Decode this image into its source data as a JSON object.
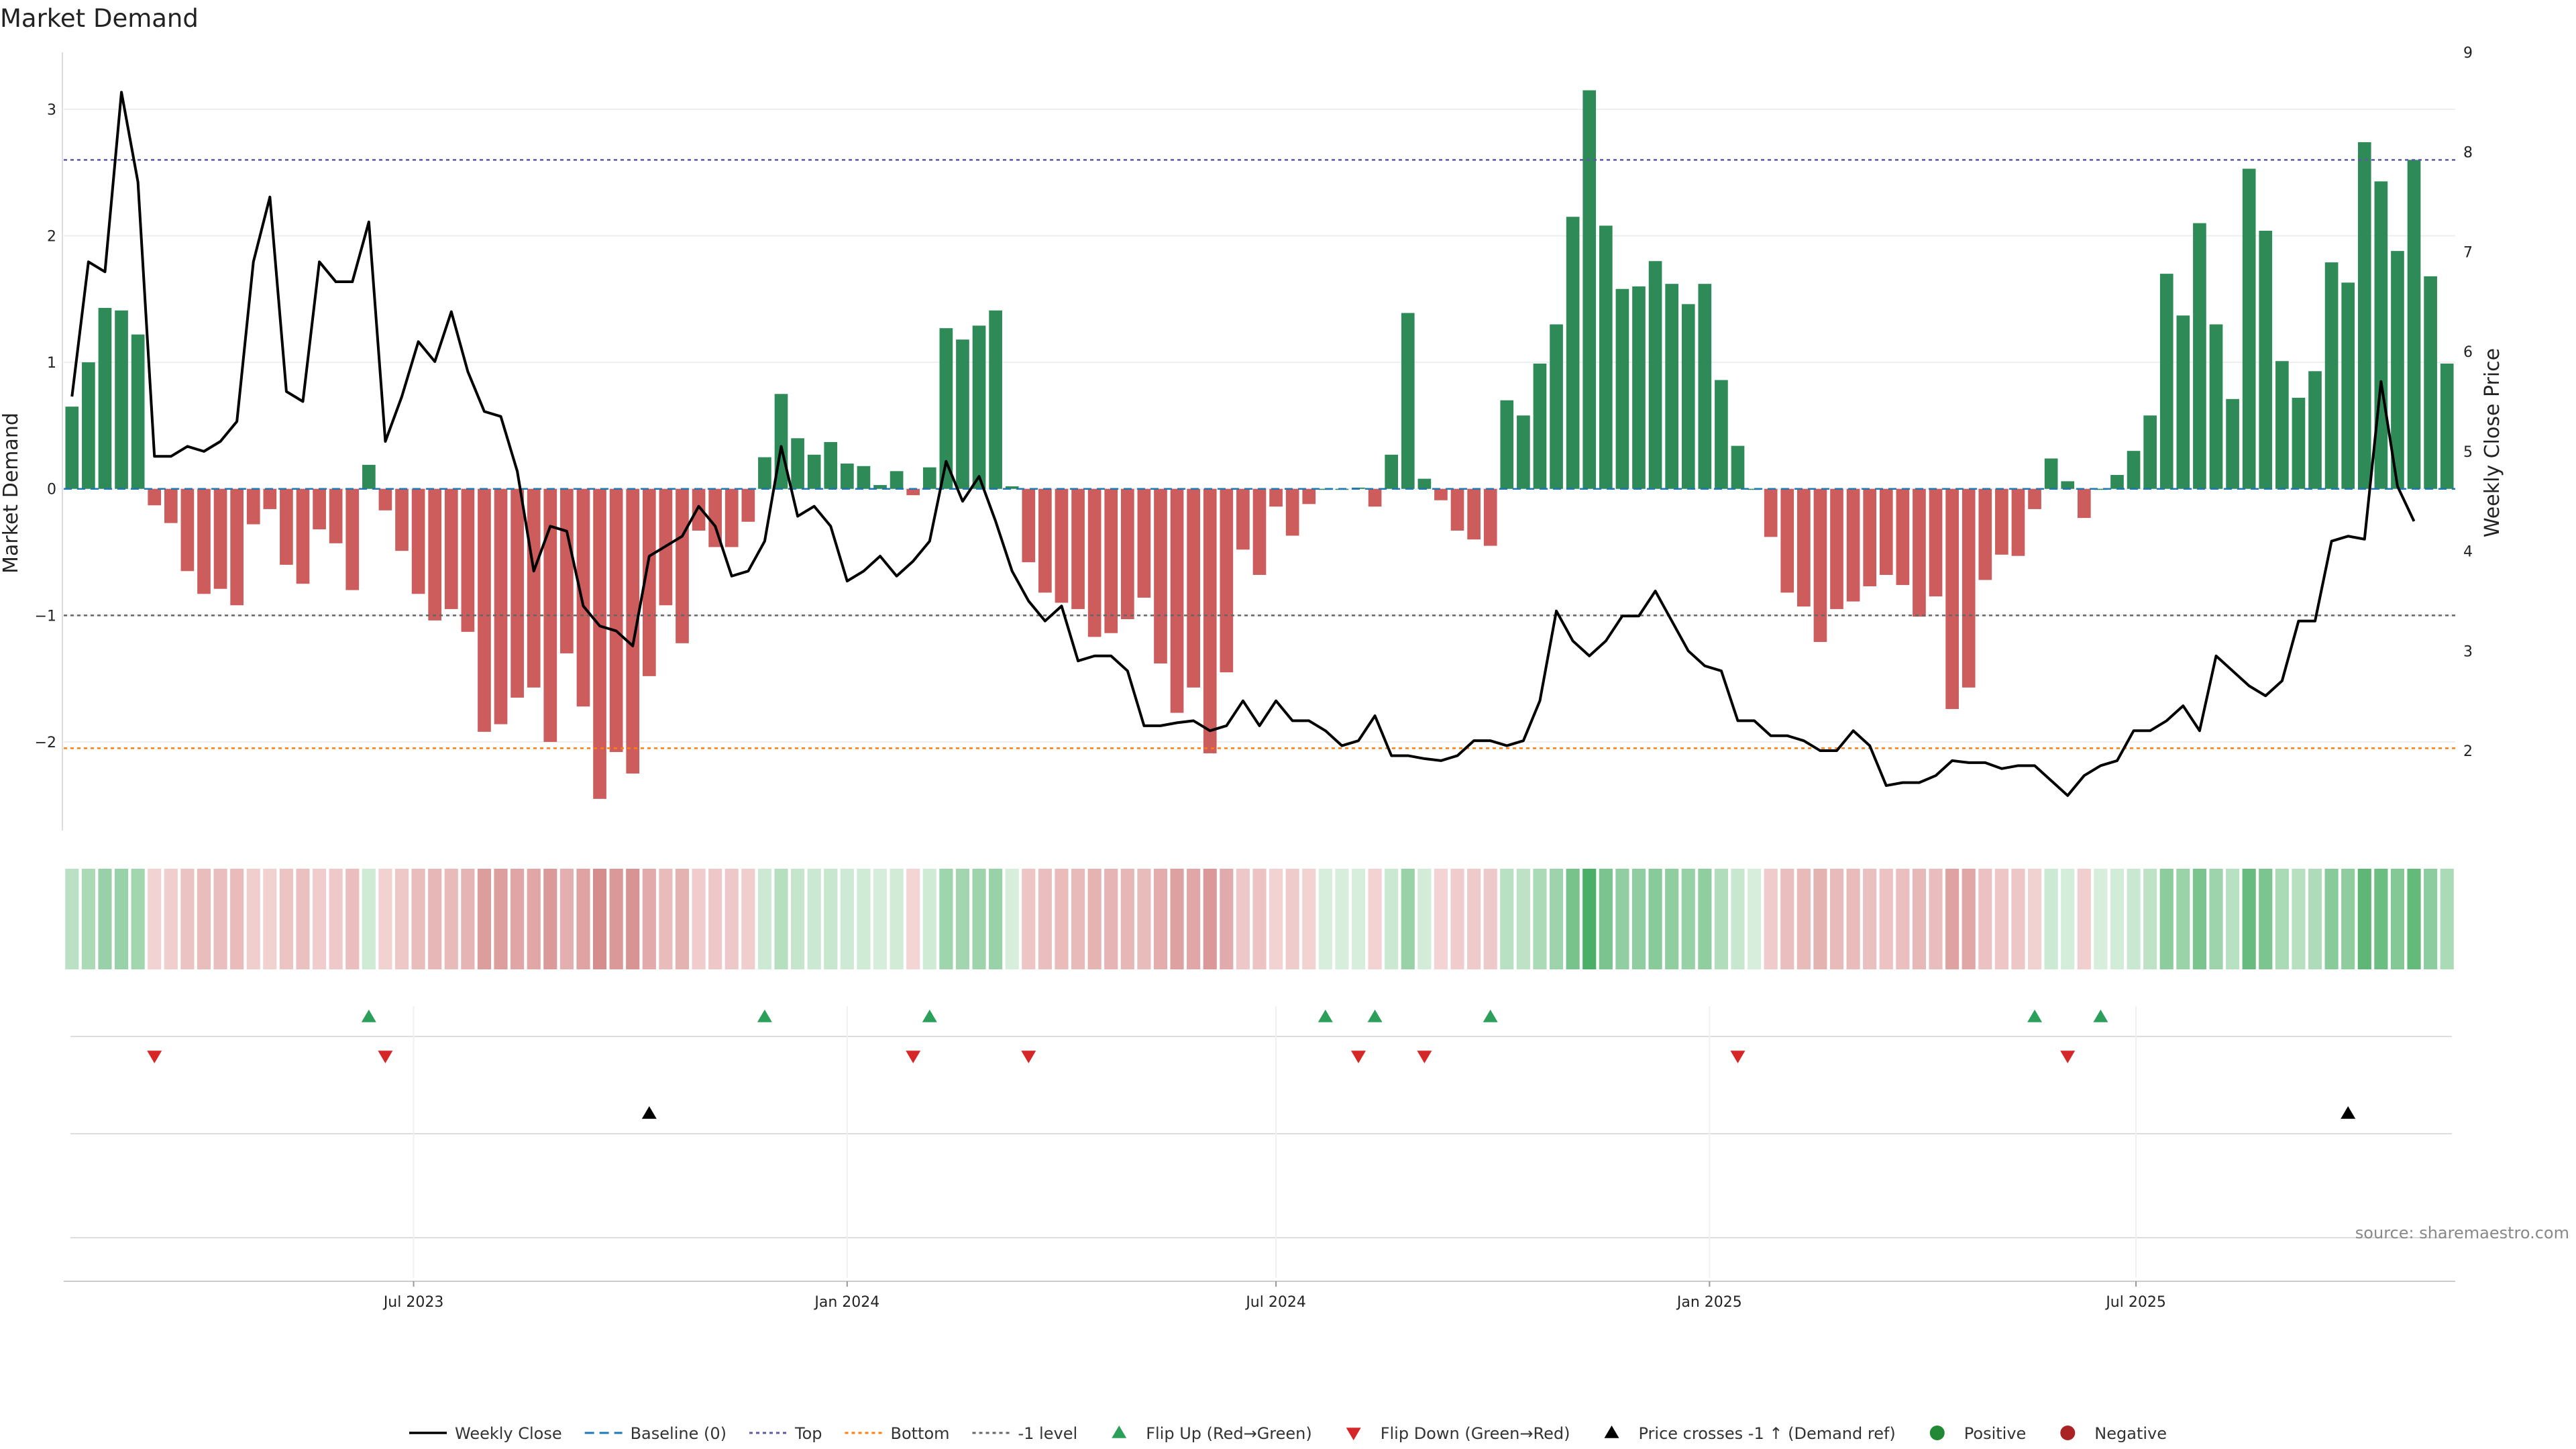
{
  "chart_data": {
    "type": "bar",
    "title": "Market Demand",
    "ylabel": "Market Demand",
    "y2label": "Weekly Close Price",
    "ylim": [
      -2.7,
      3.45
    ],
    "y2lim": [
      1.2,
      9.0
    ],
    "yticks": [
      3,
      2,
      1,
      0,
      -1,
      -2
    ],
    "yticklabels": [
      "3",
      "2",
      "1",
      "0",
      "−1",
      "−2"
    ],
    "y2ticks": [
      9,
      8,
      7,
      6,
      5,
      4,
      3,
      2
    ],
    "y2ticklabels": [
      "9",
      "8",
      "7",
      "6",
      "5",
      "4",
      "3",
      "2"
    ],
    "x_start": "2023-02-06",
    "x_end": "2025-12-01",
    "x_step_days": 7,
    "xticks": [
      "2023-07-01",
      "2024-01-01",
      "2024-07-01",
      "2025-01-01",
      "2025-07-01"
    ],
    "xticklabels": [
      "Jul 2023",
      "Jan 2024",
      "Jul 2024",
      "Jan 2025",
      "Jul 2025"
    ],
    "reference_lines": [
      {
        "name": "Baseline (0)",
        "value": 0,
        "color": "#1f77b4"
      },
      {
        "name": "Top",
        "value": 2.6,
        "color": "#5a5aa8"
      },
      {
        "name": "Bottom",
        "value": -2.05,
        "color": "#ff7f0e"
      },
      {
        "name": "-1 level",
        "value": -1,
        "color": "#666666"
      }
    ],
    "series": [
      {
        "name": "Market Demand",
        "values": [
          0.65,
          1.0,
          1.43,
          1.41,
          1.22,
          -0.13,
          -0.27,
          -0.65,
          -0.83,
          -0.79,
          -0.92,
          -0.28,
          -0.16,
          -0.6,
          -0.75,
          -0.32,
          -0.43,
          -0.8,
          0.19,
          -0.17,
          -0.49,
          -0.83,
          -1.04,
          -0.95,
          -1.13,
          -1.92,
          -1.86,
          -1.65,
          -1.57,
          -2.0,
          -1.3,
          -1.72,
          -2.45,
          -2.08,
          -2.25,
          -1.48,
          -0.92,
          -1.22,
          -0.33,
          -0.46,
          -0.46,
          -0.26,
          0.25,
          0.75,
          0.4,
          0.27,
          0.37,
          0.2,
          0.18,
          0.03,
          0.14,
          -0.05,
          0.17,
          1.27,
          1.18,
          1.29,
          1.41,
          0.02,
          -0.58,
          -0.82,
          -0.9,
          -0.95,
          -1.17,
          -1.14,
          -1.03,
          -0.86,
          -1.38,
          -1.77,
          -1.57,
          -2.09,
          -1.45,
          -0.48,
          -0.68,
          -0.14,
          -0.37,
          -0.12,
          0.0,
          0.0,
          0.01,
          -0.14,
          0.27,
          1.39,
          0.08,
          -0.09,
          -0.33,
          -0.4,
          -0.45,
          0.7,
          0.58,
          0.99,
          1.3,
          2.15,
          3.15,
          2.08,
          1.58,
          1.6,
          1.8,
          1.62,
          1.46,
          1.62,
          0.86,
          0.34,
          0.0,
          -0.38,
          -0.82,
          -0.93,
          -1.21,
          -0.95,
          -0.89,
          -0.77,
          -0.68,
          -0.76,
          -1.01,
          -0.85,
          -1.74,
          -1.57,
          -0.72,
          -0.52,
          -0.53,
          -0.16,
          0.24,
          0.06,
          -0.23,
          0.0,
          0.11,
          0.3,
          0.58,
          1.7,
          1.37,
          2.1,
          1.3,
          0.71,
          2.53,
          2.04,
          1.01,
          0.72,
          0.93,
          1.79,
          1.63,
          2.74,
          2.43,
          1.88,
          2.6,
          1.68,
          0.99
        ]
      },
      {
        "name": "Weekly Close",
        "axis": "right",
        "values": [
          5.55,
          6.9,
          6.8,
          8.6,
          7.7,
          4.95,
          4.95,
          5.05,
          5.0,
          5.1,
          5.3,
          6.9,
          7.55,
          5.6,
          5.5,
          6.9,
          6.7,
          6.7,
          7.3,
          5.1,
          5.55,
          6.1,
          5.9,
          6.4,
          5.8,
          5.4,
          5.35,
          4.8,
          3.8,
          4.25,
          4.2,
          3.45,
          3.25,
          3.2,
          3.05,
          3.95,
          4.05,
          4.15,
          4.45,
          4.25,
          3.75,
          3.8,
          4.1,
          5.05,
          4.35,
          4.45,
          4.25,
          3.7,
          3.8,
          3.95,
          3.75,
          3.9,
          4.1,
          4.9,
          4.5,
          4.75,
          4.3,
          3.8,
          3.5,
          3.3,
          3.45,
          2.9,
          2.95,
          2.95,
          2.8,
          2.25,
          2.25,
          2.28,
          2.3,
          2.2,
          2.25,
          2.5,
          2.25,
          2.5,
          2.3,
          2.3,
          2.2,
          2.05,
          2.1,
          2.35,
          1.95,
          1.95,
          1.92,
          1.9,
          1.95,
          2.1,
          2.1,
          2.05,
          2.1,
          2.5,
          3.4,
          3.1,
          2.95,
          3.1,
          3.35,
          3.35,
          3.6,
          3.3,
          3.0,
          2.85,
          2.8,
          2.3,
          2.3,
          2.15,
          2.15,
          2.1,
          2.0,
          2.0,
          2.2,
          2.05,
          1.65,
          1.68,
          1.68,
          1.75,
          1.9,
          1.88,
          1.88,
          1.82,
          1.85,
          1.85,
          1.7,
          1.55,
          1.75,
          1.85,
          1.9,
          2.2,
          2.2,
          2.3,
          2.45,
          2.2,
          2.95,
          2.8,
          2.65,
          2.55,
          2.7,
          3.3,
          3.3,
          4.1,
          4.15,
          4.12,
          5.7,
          4.65,
          4.3
        ]
      }
    ],
    "signals": {
      "flip_up": [
        18,
        42,
        52,
        76,
        79,
        86,
        119,
        123
      ],
      "flip_down": [
        5,
        19,
        51,
        58,
        78,
        82,
        101,
        121
      ],
      "price_cross": [
        35,
        138
      ]
    },
    "legend": [
      {
        "label": "Weekly Close",
        "kind": "line",
        "color": "#000000"
      },
      {
        "label": "Baseline (0)",
        "kind": "dash",
        "color": "#1f77b4"
      },
      {
        "label": "Top",
        "kind": "dot",
        "color": "#5a5aa8"
      },
      {
        "label": "Bottom",
        "kind": "dot",
        "color": "#ff7f0e"
      },
      {
        "label": "-1 level",
        "kind": "dot",
        "color": "#666666"
      },
      {
        "label": "Flip Up (Red→Green)",
        "kind": "tri-up",
        "color": "#2ca05a"
      },
      {
        "label": "Flip Down (Green→Red)",
        "kind": "tri-down",
        "color": "#d62728"
      },
      {
        "label": "Price crosses -1 ↑ (Demand ref)",
        "kind": "tri-up",
        "color": "#000000"
      },
      {
        "label": "Positive",
        "kind": "circle",
        "color": "#228833"
      },
      {
        "label": "Negative",
        "kind": "circle",
        "color": "#aa2222"
      }
    ],
    "legend_position": "bottom-center",
    "grid": true,
    "source": "source: sharemaestro.com",
    "colors": {
      "positive": "#2e8b57",
      "negative": "#cd5c5c",
      "price": "#000000"
    }
  }
}
